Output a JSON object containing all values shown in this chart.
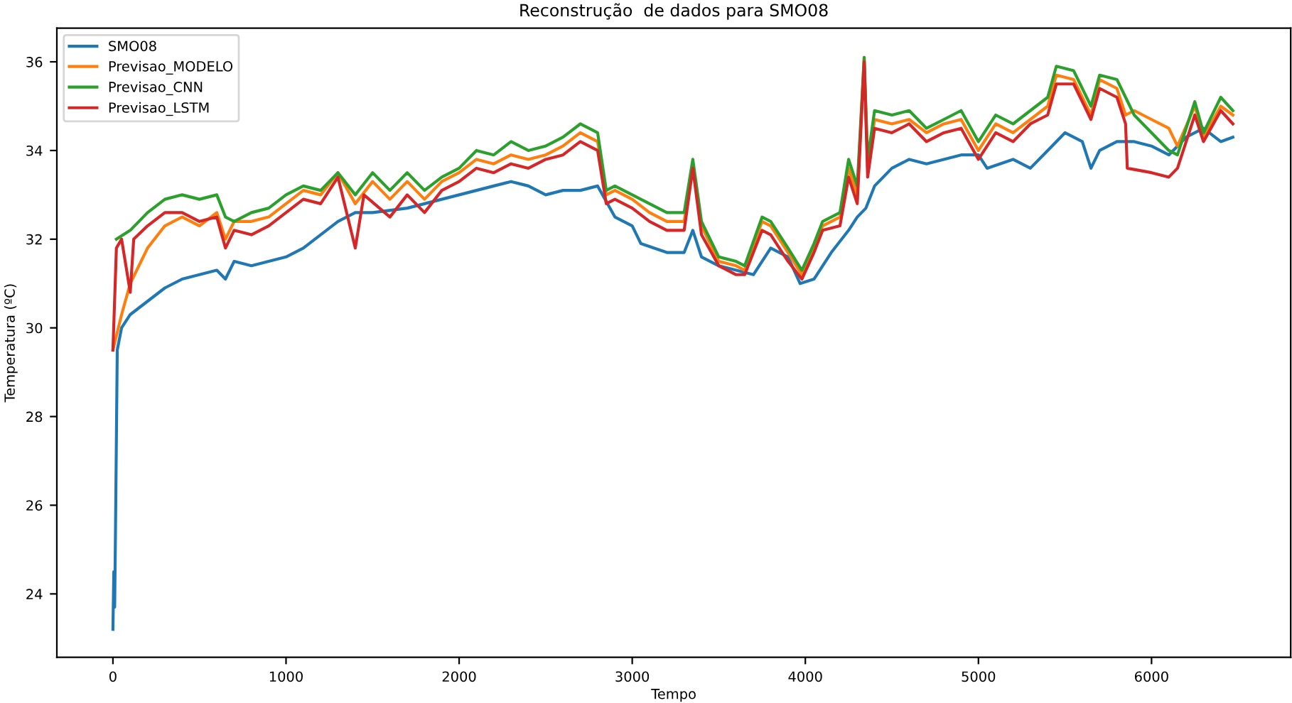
{
  "chart_data": {
    "type": "line",
    "title": "Reconstrução  de dados para SMO08",
    "xlabel": "Tempo",
    "ylabel": "Temperatura (ºC)",
    "xlim": [
      -324,
      6804
    ],
    "ylim": [
      22.57,
      36.76
    ],
    "xticks": [
      0,
      1000,
      2000,
      3000,
      4000,
      5000,
      6000
    ],
    "yticks": [
      24,
      26,
      28,
      30,
      32,
      34,
      36
    ],
    "grid": false,
    "legend": "top left",
    "marker": "none",
    "line_style": "solid",
    "series": [
      {
        "name": "SMO08",
        "color": "#1f77b4",
        "x": [
          0,
          5,
          10,
          15,
          25,
          50,
          100,
          200,
          300,
          400,
          500,
          600,
          650,
          700,
          800,
          1000,
          1100,
          1200,
          1300,
          1400,
          1500,
          1700,
          1900,
          2000,
          2200,
          2300,
          2400,
          2500,
          2600,
          2700,
          2800,
          2900,
          3000,
          3050,
          3200,
          3300,
          3350,
          3400,
          3500,
          3600,
          3700,
          3800,
          3900,
          3970,
          4050,
          4150,
          4250,
          4300,
          4350,
          4400,
          4500,
          4600,
          4700,
          4800,
          4900,
          5000,
          5050,
          5200,
          5300,
          5400,
          5500,
          5600,
          5650,
          5700,
          5800,
          5900,
          6000,
          6100,
          6200,
          6300,
          6400,
          6470
        ],
        "values": [
          23.2,
          24.5,
          23.7,
          25.5,
          29.5,
          30.0,
          30.3,
          30.6,
          30.9,
          31.1,
          31.2,
          31.3,
          31.1,
          31.5,
          31.4,
          31.6,
          31.8,
          32.1,
          32.4,
          32.6,
          32.6,
          32.7,
          32.9,
          33.0,
          33.2,
          33.3,
          33.2,
          33.0,
          33.1,
          33.1,
          33.2,
          32.5,
          32.3,
          31.9,
          31.7,
          31.7,
          32.2,
          31.6,
          31.4,
          31.3,
          31.2,
          31.8,
          31.6,
          31.0,
          31.1,
          31.7,
          32.2,
          32.5,
          32.7,
          33.2,
          33.6,
          33.8,
          33.7,
          33.8,
          33.9,
          33.9,
          33.6,
          33.8,
          33.6,
          34.0,
          34.4,
          34.2,
          33.6,
          34.0,
          34.2,
          34.2,
          34.1,
          33.9,
          34.3,
          34.5,
          34.2,
          34.3
        ]
      },
      {
        "name": "Previsao_MODELO",
        "color": "#ff7f0e",
        "x": [
          0,
          50,
          100,
          200,
          300,
          400,
          500,
          600,
          650,
          700,
          800,
          900,
          1000,
          1100,
          1200,
          1300,
          1400,
          1500,
          1600,
          1700,
          1800,
          1900,
          2000,
          2100,
          2200,
          2300,
          2400,
          2500,
          2600,
          2700,
          2800,
          2850,
          2900,
          3000,
          3100,
          3200,
          3300,
          3350,
          3400,
          3500,
          3600,
          3650,
          3750,
          3800,
          3900,
          3980,
          4050,
          4100,
          4200,
          4250,
          4300,
          4340,
          4360,
          4400,
          4500,
          4600,
          4700,
          4800,
          4900,
          5000,
          5100,
          5200,
          5300,
          5400,
          5450,
          5550,
          5650,
          5700,
          5800,
          5850,
          5900,
          6000,
          6100,
          6150,
          6250,
          6300,
          6400,
          6470
        ],
        "values": [
          29.5,
          30.3,
          31.0,
          31.8,
          32.3,
          32.5,
          32.3,
          32.6,
          32.0,
          32.4,
          32.4,
          32.5,
          32.8,
          33.1,
          33.0,
          33.5,
          32.8,
          33.3,
          32.9,
          33.3,
          32.9,
          33.3,
          33.5,
          33.8,
          33.7,
          33.9,
          33.8,
          33.9,
          34.1,
          34.4,
          34.2,
          33.0,
          33.1,
          32.9,
          32.6,
          32.4,
          32.4,
          33.7,
          32.3,
          31.5,
          31.4,
          31.3,
          32.4,
          32.3,
          31.7,
          31.2,
          31.8,
          32.3,
          32.5,
          33.6,
          33.0,
          36.1,
          33.6,
          34.7,
          34.6,
          34.7,
          34.4,
          34.6,
          34.7,
          34.0,
          34.6,
          34.4,
          34.7,
          35.0,
          35.7,
          35.6,
          34.8,
          35.6,
          35.4,
          34.8,
          34.9,
          34.7,
          34.5,
          34.1,
          35.0,
          34.3,
          35.0,
          34.8
        ]
      },
      {
        "name": "Previsao_CNN",
        "color": "#2ca02c",
        "x": [
          20,
          100,
          200,
          300,
          400,
          500,
          600,
          650,
          700,
          800,
          900,
          1000,
          1100,
          1200,
          1300,
          1400,
          1500,
          1600,
          1700,
          1800,
          1900,
          2000,
          2100,
          2200,
          2300,
          2400,
          2500,
          2600,
          2700,
          2800,
          2850,
          2900,
          3000,
          3100,
          3200,
          3300,
          3350,
          3400,
          3500,
          3600,
          3650,
          3750,
          3800,
          3900,
          3980,
          4050,
          4100,
          4200,
          4250,
          4300,
          4340,
          4360,
          4400,
          4500,
          4600,
          4700,
          4800,
          4900,
          5000,
          5100,
          5200,
          5300,
          5400,
          5450,
          5550,
          5650,
          5700,
          5800,
          5900,
          6000,
          6100,
          6150,
          6250,
          6300,
          6400,
          6470
        ],
        "values": [
          32.0,
          32.2,
          32.6,
          32.9,
          33.0,
          32.9,
          33.0,
          32.5,
          32.4,
          32.6,
          32.7,
          33.0,
          33.2,
          33.1,
          33.5,
          33.0,
          33.5,
          33.1,
          33.5,
          33.1,
          33.4,
          33.6,
          34.0,
          33.9,
          34.2,
          34.0,
          34.1,
          34.3,
          34.6,
          34.4,
          33.1,
          33.2,
          33.0,
          32.8,
          32.6,
          32.6,
          33.8,
          32.4,
          31.6,
          31.5,
          31.4,
          32.5,
          32.4,
          31.8,
          31.3,
          31.9,
          32.4,
          32.6,
          33.8,
          33.2,
          36.1,
          33.8,
          34.9,
          34.8,
          34.9,
          34.5,
          34.7,
          34.9,
          34.2,
          34.8,
          34.6,
          34.9,
          35.2,
          35.9,
          35.8,
          35.0,
          35.7,
          35.6,
          34.8,
          34.4,
          34.0,
          33.9,
          35.1,
          34.4,
          35.2,
          34.9
        ]
      },
      {
        "name": "Previsao_LSTM",
        "color": "#d62728",
        "x": [
          0,
          20,
          50,
          100,
          120,
          200,
          300,
          400,
          500,
          600,
          650,
          700,
          800,
          900,
          1000,
          1100,
          1200,
          1300,
          1400,
          1450,
          1600,
          1700,
          1800,
          1900,
          2000,
          2100,
          2200,
          2300,
          2400,
          2500,
          2600,
          2700,
          2800,
          2850,
          2900,
          3000,
          3100,
          3200,
          3300,
          3350,
          3400,
          3500,
          3600,
          3650,
          3750,
          3800,
          3900,
          3980,
          4050,
          4100,
          4200,
          4250,
          4300,
          4340,
          4360,
          4400,
          4500,
          4600,
          4700,
          4800,
          4900,
          5000,
          5100,
          5200,
          5300,
          5400,
          5450,
          5550,
          5650,
          5700,
          5800,
          5850,
          5860,
          6000,
          6100,
          6150,
          6250,
          6300,
          6400,
          6470
        ],
        "values": [
          29.5,
          31.8,
          32.0,
          30.8,
          32.0,
          32.3,
          32.6,
          32.6,
          32.4,
          32.5,
          31.8,
          32.2,
          32.1,
          32.3,
          32.6,
          32.9,
          32.8,
          33.4,
          31.8,
          33.0,
          32.5,
          33.0,
          32.6,
          33.1,
          33.3,
          33.6,
          33.5,
          33.7,
          33.6,
          33.8,
          33.9,
          34.2,
          34.0,
          32.8,
          32.9,
          32.7,
          32.4,
          32.2,
          32.2,
          33.6,
          32.1,
          31.4,
          31.2,
          31.2,
          32.2,
          32.1,
          31.5,
          31.1,
          31.7,
          32.2,
          32.3,
          33.4,
          32.8,
          36.0,
          33.4,
          34.5,
          34.4,
          34.6,
          34.2,
          34.4,
          34.5,
          33.8,
          34.4,
          34.2,
          34.6,
          34.8,
          35.5,
          35.5,
          34.7,
          35.4,
          35.2,
          34.6,
          33.6,
          33.5,
          33.4,
          33.6,
          34.8,
          34.2,
          34.9,
          34.6
        ]
      }
    ]
  }
}
